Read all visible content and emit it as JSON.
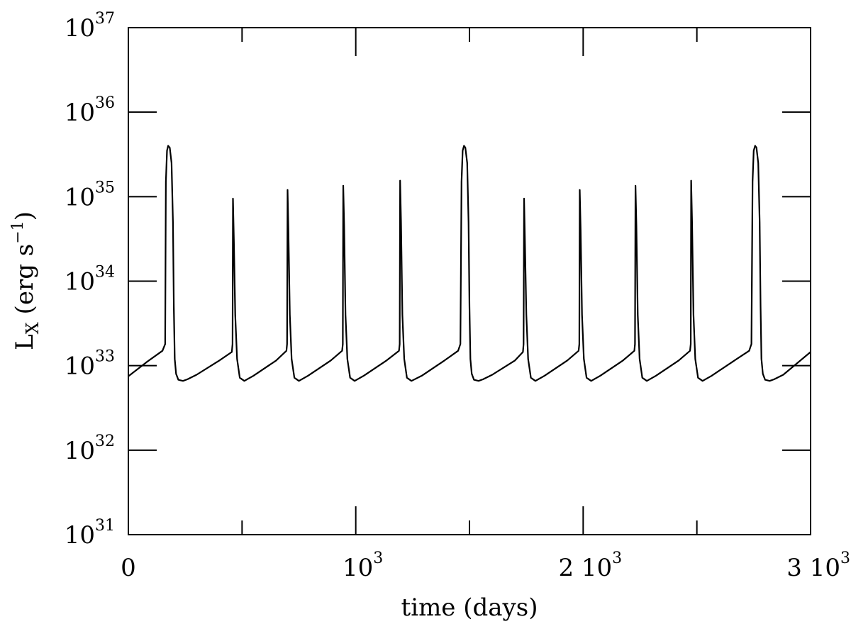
{
  "chart_data": {
    "type": "line",
    "title": "",
    "xlabel": "time (days)",
    "ylabel": {
      "main": "L",
      "subscript": "X",
      "units_prefix": " (erg s",
      "units_exp": "−1",
      "units_suffix": ")"
    },
    "xlim": [
      0,
      3000
    ],
    "ylim": [
      1e+31,
      1e+37
    ],
    "y_scale": "log",
    "grid": false,
    "legend": "none",
    "line_color": "#000000",
    "x_ticks": [
      {
        "value": 0,
        "base": "0",
        "exp": ""
      },
      {
        "value": 1000,
        "base": "10",
        "exp": "3"
      },
      {
        "value": 2000,
        "base": "2 10",
        "exp": "3"
      },
      {
        "value": 3000,
        "base": "3 10",
        "exp": "3"
      }
    ],
    "x_minor_ticks": [
      500,
      1500,
      2500
    ],
    "y_ticks": [
      {
        "value": 1e+31,
        "base": "10",
        "exp": "31"
      },
      {
        "value": 1e+32,
        "base": "10",
        "exp": "32"
      },
      {
        "value": 1e+33,
        "base": "10",
        "exp": "33"
      },
      {
        "value": 1e+34,
        "base": "10",
        "exp": "34"
      },
      {
        "value": 1e+35,
        "base": "10",
        "exp": "35"
      },
      {
        "value": 1e+36,
        "base": "10",
        "exp": "36"
      },
      {
        "value": 1e+37,
        "base": "10",
        "exp": "37"
      }
    ],
    "series": [
      {
        "x": [
          0,
          80,
          150,
          162,
          165,
          170,
          175,
          182,
          190,
          196,
          200,
          204,
          210,
          220,
          240,
          260,
          300,
          400,
          455,
          458,
          460,
          464,
          470,
          478,
          490,
          510,
          550,
          650,
          695,
          698,
          700,
          704,
          710,
          718,
          730,
          750,
          790,
          890,
          940,
          943,
          945,
          949,
          955,
          963,
          975,
          995,
          1035,
          1135,
          1190,
          1193,
          1195,
          1199,
          1205,
          1213,
          1225,
          1245,
          1290,
          1390,
          1450,
          1460,
          1465,
          1470,
          1476,
          1482,
          1490,
          1496,
          1500,
          1504,
          1510,
          1520,
          1540,
          1560,
          1600,
          1700,
          1735,
          1738,
          1740,
          1744,
          1750,
          1758,
          1770,
          1790,
          1830,
          1930,
          1980,
          1983,
          1985,
          1989,
          1995,
          2003,
          2015,
          2035,
          2075,
          2175,
          2225,
          2228,
          2230,
          2234,
          2240,
          2248,
          2260,
          2280,
          2320,
          2420,
          2470,
          2473,
          2475,
          2479,
          2485,
          2493,
          2505,
          2525,
          2565,
          2665,
          2730,
          2740,
          2745,
          2750,
          2756,
          2762,
          2770,
          2776,
          2780,
          2784,
          2790,
          2800,
          2820,
          2840,
          2880,
          3000
        ],
        "y": [
          7.5e+32,
          1.1e+33,
          1.5e+33,
          1.8e+33,
          1.5e+35,
          3.5e+35,
          4e+35,
          3.8e+35,
          2.5e+35,
          5e+34,
          5e+33,
          1.2e+33,
          8e+32,
          6.8e+32,
          6.6e+32,
          6.9e+32,
          7.8e+32,
          1.15e+33,
          1.45e+33,
          1.8e+33,
          9.5e+34,
          3e+34,
          4e+33,
          1.2e+33,
          7.2e+32,
          6.6e+32,
          7.6e+32,
          1.15e+33,
          1.5e+33,
          1.8e+33,
          1.2e+35,
          4e+34,
          4e+33,
          1.2e+33,
          7.2e+32,
          6.6e+32,
          7.6e+32,
          1.15e+33,
          1.5e+33,
          1.8e+33,
          1.35e+35,
          4.5e+34,
          4e+33,
          1.2e+33,
          7.2e+32,
          6.6e+32,
          7.6e+32,
          1.15e+33,
          1.5e+33,
          1.8e+33,
          1.55e+35,
          5e+34,
          4e+33,
          1.2e+33,
          7.2e+32,
          6.6e+32,
          7.6e+32,
          1.15e+33,
          1.5e+33,
          1.8e+33,
          1.5e+35,
          3.5e+35,
          4e+35,
          3.8e+35,
          2.5e+35,
          5e+34,
          5e+33,
          1.2e+33,
          8e+32,
          6.8e+32,
          6.6e+32,
          6.9e+32,
          7.8e+32,
          1.15e+33,
          1.45e+33,
          1.8e+33,
          9.5e+34,
          3e+34,
          4e+33,
          1.2e+33,
          7.2e+32,
          6.6e+32,
          7.6e+32,
          1.15e+33,
          1.5e+33,
          1.8e+33,
          1.2e+35,
          4e+34,
          4e+33,
          1.2e+33,
          7.2e+32,
          6.6e+32,
          7.6e+32,
          1.15e+33,
          1.5e+33,
          1.8e+33,
          1.35e+35,
          4.5e+34,
          4e+33,
          1.2e+33,
          7.2e+32,
          6.6e+32,
          7.6e+32,
          1.15e+33,
          1.5e+33,
          1.8e+33,
          1.55e+35,
          5e+34,
          4e+33,
          1.2e+33,
          7.2e+32,
          6.6e+32,
          7.6e+32,
          1.15e+33,
          1.5e+33,
          1.8e+33,
          1.5e+35,
          3.5e+35,
          4e+35,
          3.8e+35,
          2.5e+35,
          5e+34,
          5e+33,
          1.2e+33,
          8e+32,
          6.8e+32,
          6.6e+32,
          6.9e+32,
          7.8e+32,
          1.45e+33
        ]
      }
    ]
  }
}
